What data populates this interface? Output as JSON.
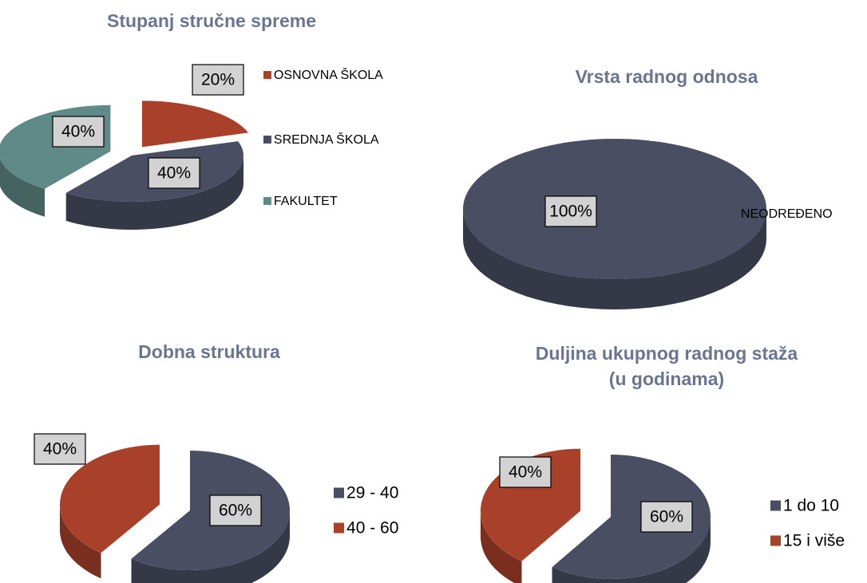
{
  "chart_data": [
    {
      "type": "pie",
      "title": "Stupanj stručne spreme",
      "categories": [
        "OSNOVNA ŠKOLA",
        "SREDNJA ŠKOLA",
        "FAKULTET"
      ],
      "values": [
        20,
        40,
        40
      ],
      "value_labels": [
        "20%",
        "40%",
        "40%"
      ],
      "colors": [
        "#a9412a",
        "#4a4e62",
        "#5f8a87"
      ]
    },
    {
      "type": "pie",
      "title": "Vrsta radnog odnosa",
      "categories": [
        "NEODREĐENO"
      ],
      "values": [
        100
      ],
      "value_labels": [
        "100%"
      ],
      "colors": [
        "#4a4e62"
      ]
    },
    {
      "type": "pie",
      "title": "Dobna struktura",
      "categories": [
        "29 - 40",
        "40 - 60"
      ],
      "values": [
        60,
        40
      ],
      "value_labels": [
        "60%",
        "40%"
      ],
      "colors": [
        "#4a4e62",
        "#a9412a"
      ]
    },
    {
      "type": "pie",
      "title": "Duljina ukupnog radnog staža (u godinama)",
      "categories": [
        "1 do 10",
        "15 i više"
      ],
      "values": [
        60,
        40
      ],
      "value_labels": [
        "60%",
        "40%"
      ],
      "colors": [
        "#4a4e62",
        "#a9412a"
      ]
    }
  ]
}
